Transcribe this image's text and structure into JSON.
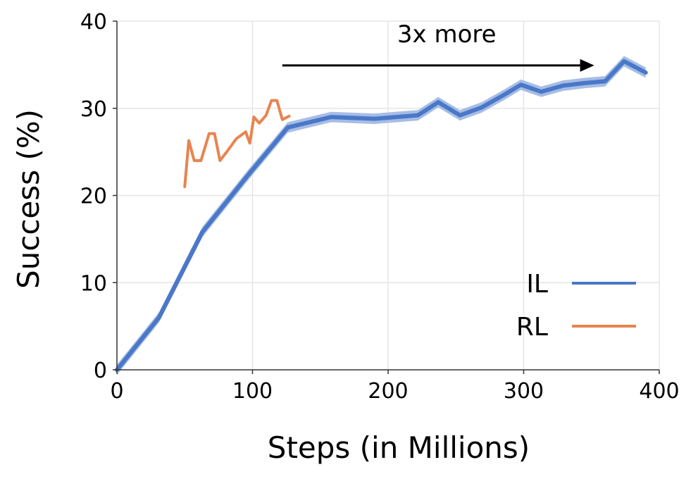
{
  "chart_data": {
    "type": "line",
    "xlabel": "Steps (in Millions)",
    "ylabel": "Success (%)",
    "xlim": [
      0,
      400
    ],
    "ylim": [
      0,
      40
    ],
    "xticks": [
      0,
      100,
      200,
      300,
      400
    ],
    "yticks": [
      0,
      10,
      20,
      30,
      40
    ],
    "grid": true,
    "legend_position": "lower-right",
    "annotation": {
      "text": "3x more",
      "arrow_from_x": 122,
      "arrow_to_x": 352,
      "arrow_y": 35
    },
    "series": [
      {
        "name": "IL",
        "color": "#4a78c8",
        "band_color": "#9db6e2",
        "band_halfwidth": 0.6,
        "x": [
          0,
          31,
          63,
          96,
          126,
          158,
          190,
          222,
          237,
          253,
          269,
          285,
          298,
          313,
          329,
          345,
          360,
          374,
          390
        ],
        "y": [
          0,
          6,
          15.8,
          22.2,
          27.8,
          29,
          28.8,
          29.2,
          30.7,
          29.2,
          30.1,
          31.5,
          32.7,
          31.9,
          32.6,
          32.9,
          33.1,
          35.4,
          34.1
        ]
      },
      {
        "name": "RL",
        "color": "#e8844f",
        "x": [
          50,
          53,
          57,
          62,
          68,
          72,
          76,
          81,
          88,
          95,
          98,
          101,
          105,
          110,
          114,
          118,
          122,
          127
        ],
        "y": [
          21,
          26.3,
          24,
          24,
          27.1,
          27.1,
          24,
          25,
          26.5,
          27.3,
          26,
          29,
          28.3,
          29.2,
          30.9,
          30.9,
          28.7,
          29.1
        ]
      }
    ]
  }
}
